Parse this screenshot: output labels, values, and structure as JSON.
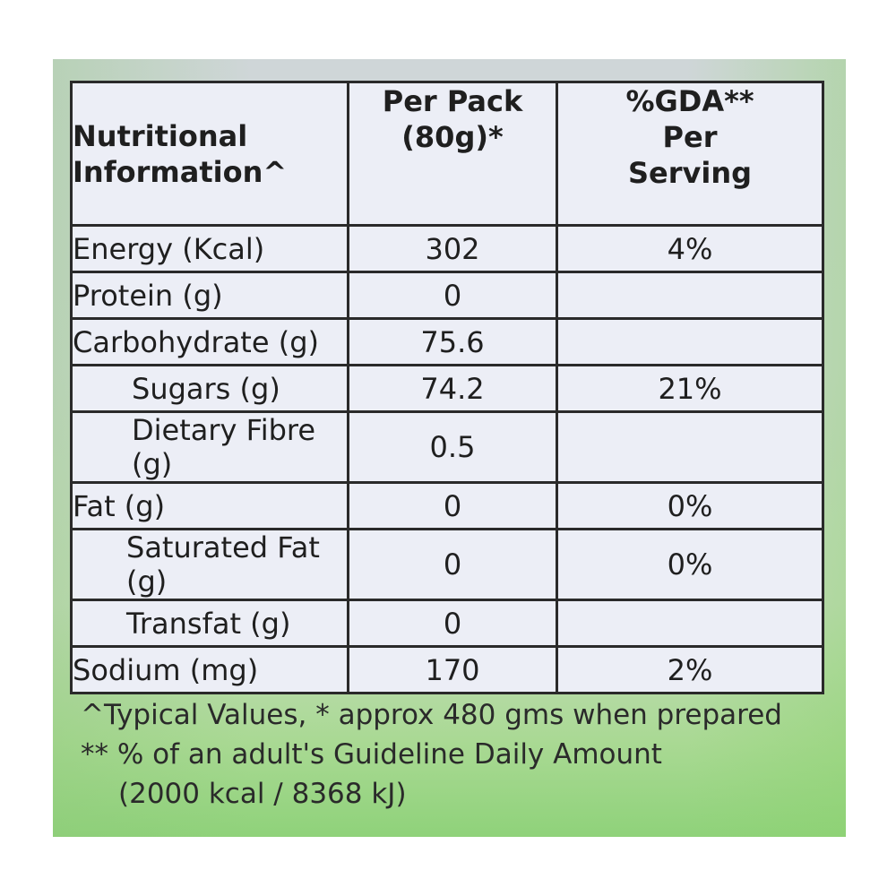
{
  "header": {
    "name_line1": "Nutritional",
    "name_line2": "Information^",
    "pack_line1": "Per Pack",
    "pack_line2": "(80g)*",
    "gda_line1": "%GDA**",
    "gda_line2": "Per",
    "gda_line3": "Serving"
  },
  "rows": [
    {
      "name": "Energy (Kcal)",
      "per_pack": "302",
      "gda": "4%"
    },
    {
      "name": "Protein (g)",
      "per_pack": "0",
      "gda": ""
    },
    {
      "name": "Carbohydrate (g)",
      "per_pack": "75.6",
      "gda": ""
    },
    {
      "name": "Sugars (g)",
      "per_pack": "74.2",
      "gda": "21%"
    },
    {
      "name": "Dietary Fibre (g)",
      "per_pack": "0.5",
      "gda": ""
    },
    {
      "name": "Fat (g)",
      "per_pack": "0",
      "gda": "0%"
    },
    {
      "name": "Saturated Fat (g)",
      "per_pack": "0",
      "gda": "0%"
    },
    {
      "name": "Transfat (g)",
      "per_pack": "0",
      "gda": ""
    },
    {
      "name": "Sodium (mg)",
      "per_pack": "170",
      "gda": "2%"
    }
  ],
  "footnotes": {
    "line1": "^Typical Values,  * approx 480 gms when prepared",
    "line2": "** % of an adult's Guideline Daily Amount",
    "line3": "(2000 kcal / 8368 kJ)"
  }
}
